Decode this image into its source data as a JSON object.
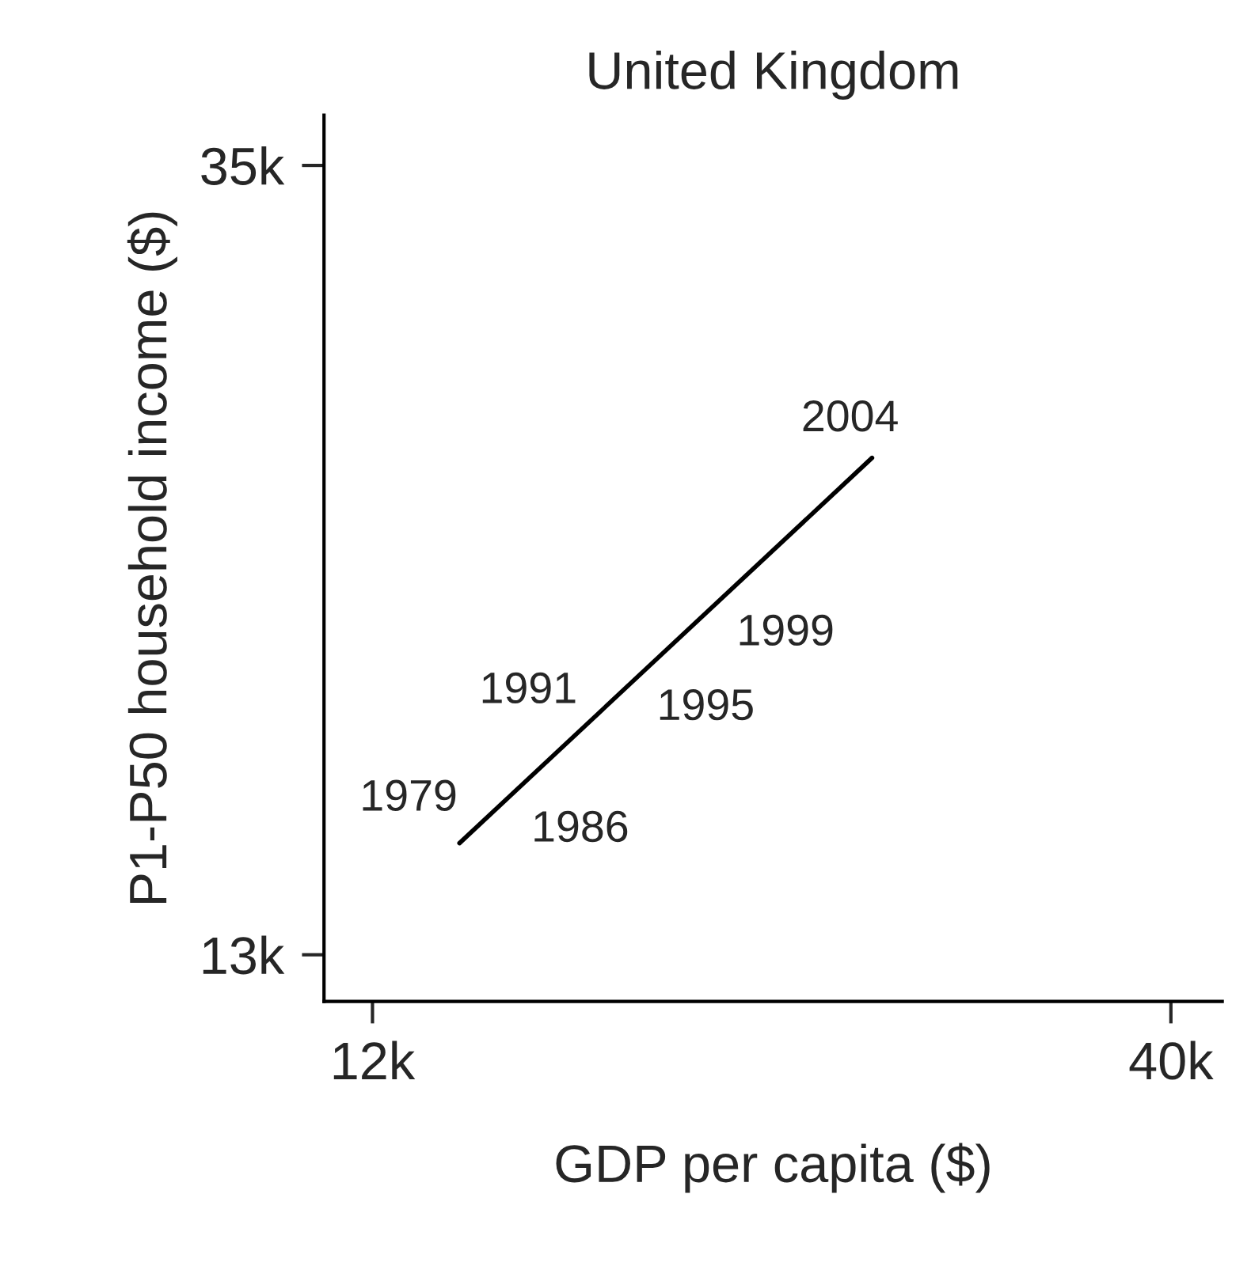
{
  "chart_data": {
    "type": "line",
    "title": "United Kingdom",
    "xlabel": "GDP per capita ($)",
    "ylabel": "P1-P50 household income ($)",
    "series": [
      {
        "color": "#000000",
        "x": [
          15.05,
          29.52
        ],
        "values": [
          16.11,
          26.85
        ]
      }
    ],
    "annotations": [
      {
        "text": "1979",
        "x": 15.6,
        "y": 16.52
      },
      {
        "text": "1986",
        "x": 16.8,
        "y": 17.41
      },
      {
        "text": "1991",
        "x": 19.8,
        "y": 19.64
      },
      {
        "text": "1995",
        "x": 21.2,
        "y": 20.68
      },
      {
        "text": "1999",
        "x": 24.0,
        "y": 22.76
      },
      {
        "text": "2004",
        "x": 29.52,
        "y": 26.85
      }
    ],
    "xlim": [
      10.3,
      41.8
    ],
    "ylim": [
      11.7,
      36.4
    ],
    "xticks": [
      {
        "value": 12,
        "label": "12k"
      },
      {
        "value": 40,
        "label": "40k"
      }
    ],
    "yticks": [
      {
        "value": 13,
        "label": "13k"
      },
      {
        "value": 35,
        "label": "35k"
      }
    ],
    "grid": false,
    "legend": false,
    "marker": "none",
    "line_style": "solid"
  }
}
